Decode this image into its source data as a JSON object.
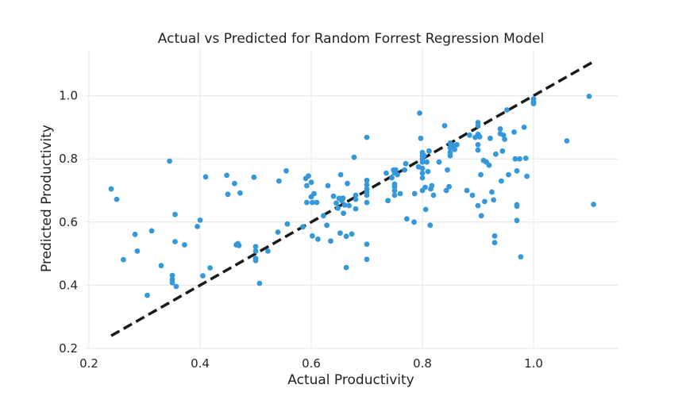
{
  "chart_data": {
    "type": "scatter",
    "title": "Actual vs Predicted for Random Forrest Regression Model",
    "xlabel": "Actual Productivity",
    "ylabel": "Predicted Productivity",
    "xlim": [
      0.2,
      1.15
    ],
    "ylim": [
      0.2,
      1.15
    ],
    "xticks": [
      0.2,
      0.4,
      0.6,
      0.8,
      1.0
    ],
    "yticks": [
      0.2,
      0.4,
      0.6,
      0.8,
      1.0
    ],
    "xtick_labels": [
      "0.2",
      "0.4",
      "0.6",
      "0.8",
      "1.0"
    ],
    "ytick_labels": [
      "0.2",
      "0.4",
      "0.6",
      "0.8",
      "1.0"
    ],
    "grid": true,
    "reference_line": {
      "style": "dashed",
      "color": "#1a1a1a",
      "from": [
        0.24,
        0.24
      ],
      "to": [
        1.11,
        1.11
      ]
    },
    "point_color": "#3498db",
    "points": [
      [
        0.24,
        0.705
      ],
      [
        0.25,
        0.672
      ],
      [
        0.262,
        0.481
      ],
      [
        0.283,
        0.561
      ],
      [
        0.287,
        0.508
      ],
      [
        0.305,
        0.368
      ],
      [
        0.313,
        0.572
      ],
      [
        0.33,
        0.462
      ],
      [
        0.345,
        0.793
      ],
      [
        0.35,
        0.431
      ],
      [
        0.35,
        0.418
      ],
      [
        0.35,
        0.408
      ],
      [
        0.355,
        0.624
      ],
      [
        0.355,
        0.538
      ],
      [
        0.357,
        0.396
      ],
      [
        0.372,
        0.528
      ],
      [
        0.395,
        0.586
      ],
      [
        0.4,
        0.606
      ],
      [
        0.405,
        0.43
      ],
      [
        0.41,
        0.743
      ],
      [
        0.418,
        0.455
      ],
      [
        0.448,
        0.748
      ],
      [
        0.45,
        0.688
      ],
      [
        0.462,
        0.722
      ],
      [
        0.465,
        0.528
      ],
      [
        0.468,
        0.532
      ],
      [
        0.47,
        0.526
      ],
      [
        0.472,
        0.692
      ],
      [
        0.497,
        0.742
      ],
      [
        0.5,
        0.522
      ],
      [
        0.5,
        0.508
      ],
      [
        0.5,
        0.485
      ],
      [
        0.5,
        0.478
      ],
      [
        0.507,
        0.406
      ],
      [
        0.522,
        0.508
      ],
      [
        0.54,
        0.568
      ],
      [
        0.542,
        0.73
      ],
      [
        0.555,
        0.762
      ],
      [
        0.557,
        0.594
      ],
      [
        0.585,
        0.585
      ],
      [
        0.59,
        0.738
      ],
      [
        0.592,
        0.715
      ],
      [
        0.592,
        0.662
      ],
      [
        0.595,
        0.746
      ],
      [
        0.6,
        0.726
      ],
      [
        0.6,
        0.68
      ],
      [
        0.602,
        0.662
      ],
      [
        0.602,
        0.556
      ],
      [
        0.605,
        0.69
      ],
      [
        0.61,
        0.662
      ],
      [
        0.612,
        0.546
      ],
      [
        0.622,
        0.62
      ],
      [
        0.628,
        0.59
      ],
      [
        0.63,
        0.715
      ],
      [
        0.635,
        0.54
      ],
      [
        0.64,
        0.682
      ],
      [
        0.645,
        0.66
      ],
      [
        0.648,
        0.644
      ],
      [
        0.65,
        0.675
      ],
      [
        0.652,
        0.565
      ],
      [
        0.653,
        0.75
      ],
      [
        0.655,
        0.668
      ],
      [
        0.657,
        0.676
      ],
      [
        0.658,
        0.628
      ],
      [
        0.66,
        0.654
      ],
      [
        0.663,
        0.456
      ],
      [
        0.663,
        0.555
      ],
      [
        0.665,
        0.722
      ],
      [
        0.668,
        0.652
      ],
      [
        0.673,
        0.562
      ],
      [
        0.677,
        0.805
      ],
      [
        0.68,
        0.685
      ],
      [
        0.68,
        0.672
      ],
      [
        0.68,
        0.642
      ],
      [
        0.7,
        0.868
      ],
      [
        0.7,
        0.732
      ],
      [
        0.7,
        0.718
      ],
      [
        0.7,
        0.705
      ],
      [
        0.7,
        0.695
      ],
      [
        0.7,
        0.685
      ],
      [
        0.7,
        0.662
      ],
      [
        0.7,
        0.53
      ],
      [
        0.7,
        0.482
      ],
      [
        0.735,
        0.755
      ],
      [
        0.738,
        0.668
      ],
      [
        0.745,
        0.74
      ],
      [
        0.748,
        0.765
      ],
      [
        0.75,
        0.755
      ],
      [
        0.75,
        0.72
      ],
      [
        0.75,
        0.712
      ],
      [
        0.75,
        0.7
      ],
      [
        0.75,
        0.685
      ],
      [
        0.752,
        0.765
      ],
      [
        0.755,
        0.75
      ],
      [
        0.76,
        0.69
      ],
      [
        0.768,
        0.765
      ],
      [
        0.77,
        0.785
      ],
      [
        0.772,
        0.61
      ],
      [
        0.785,
        0.6
      ],
      [
        0.786,
        0.69
      ],
      [
        0.793,
        0.775
      ],
      [
        0.795,
        0.945
      ],
      [
        0.797,
        0.865
      ],
      [
        0.8,
        0.82
      ],
      [
        0.8,
        0.81
      ],
      [
        0.8,
        0.8
      ],
      [
        0.8,
        0.79
      ],
      [
        0.8,
        0.77
      ],
      [
        0.8,
        0.755
      ],
      [
        0.8,
        0.74
      ],
      [
        0.8,
        0.7
      ],
      [
        0.803,
        0.81
      ],
      [
        0.805,
        0.71
      ],
      [
        0.806,
        0.64
      ],
      [
        0.808,
        0.79
      ],
      [
        0.81,
        0.76
      ],
      [
        0.812,
        0.825
      ],
      [
        0.814,
        0.59
      ],
      [
        0.815,
        0.705
      ],
      [
        0.817,
        0.715
      ],
      [
        0.82,
        0.685
      ],
      [
        0.83,
        0.79
      ],
      [
        0.84,
        0.905
      ],
      [
        0.843,
        0.7
      ],
      [
        0.845,
        0.765
      ],
      [
        0.848,
        0.712
      ],
      [
        0.85,
        0.85
      ],
      [
        0.85,
        0.835
      ],
      [
        0.85,
        0.82
      ],
      [
        0.85,
        0.81
      ],
      [
        0.855,
        0.843
      ],
      [
        0.858,
        0.83
      ],
      [
        0.862,
        0.845
      ],
      [
        0.88,
        0.7
      ],
      [
        0.885,
        0.875
      ],
      [
        0.89,
        0.685
      ],
      [
        0.895,
        0.868
      ],
      [
        0.9,
        0.915
      ],
      [
        0.9,
        0.905
      ],
      [
        0.9,
        0.878
      ],
      [
        0.9,
        0.845
      ],
      [
        0.9,
        0.828
      ],
      [
        0.9,
        0.652
      ],
      [
        0.903,
        0.87
      ],
      [
        0.905,
        0.75
      ],
      [
        0.906,
        0.62
      ],
      [
        0.91,
        0.795
      ],
      [
        0.912,
        0.665
      ],
      [
        0.915,
        0.79
      ],
      [
        0.92,
        0.78
      ],
      [
        0.922,
        0.865
      ],
      [
        0.925,
        0.695
      ],
      [
        0.928,
        0.67
      ],
      [
        0.93,
        0.556
      ],
      [
        0.93,
        0.535
      ],
      [
        0.932,
        0.815
      ],
      [
        0.94,
        0.895
      ],
      [
        0.94,
        0.88
      ],
      [
        0.942,
        0.73
      ],
      [
        0.944,
        0.825
      ],
      [
        0.946,
        0.875
      ],
      [
        0.948,
        0.862
      ],
      [
        0.952,
        0.955
      ],
      [
        0.955,
        0.75
      ],
      [
        0.965,
        0.885
      ],
      [
        0.967,
        0.8
      ],
      [
        0.97,
        0.762
      ],
      [
        0.97,
        0.655
      ],
      [
        0.97,
        0.65
      ],
      [
        0.97,
        0.605
      ],
      [
        0.975,
        0.8
      ],
      [
        0.977,
        0.49
      ],
      [
        0.983,
        0.9
      ],
      [
        0.986,
        0.802
      ],
      [
        0.988,
        0.745
      ],
      [
        1.0,
        0.99
      ],
      [
        1.0,
        0.98
      ],
      [
        1.0,
        0.975
      ],
      [
        1.06,
        0.857
      ],
      [
        1.1,
        0.998
      ],
      [
        1.108,
        0.656
      ]
    ]
  }
}
